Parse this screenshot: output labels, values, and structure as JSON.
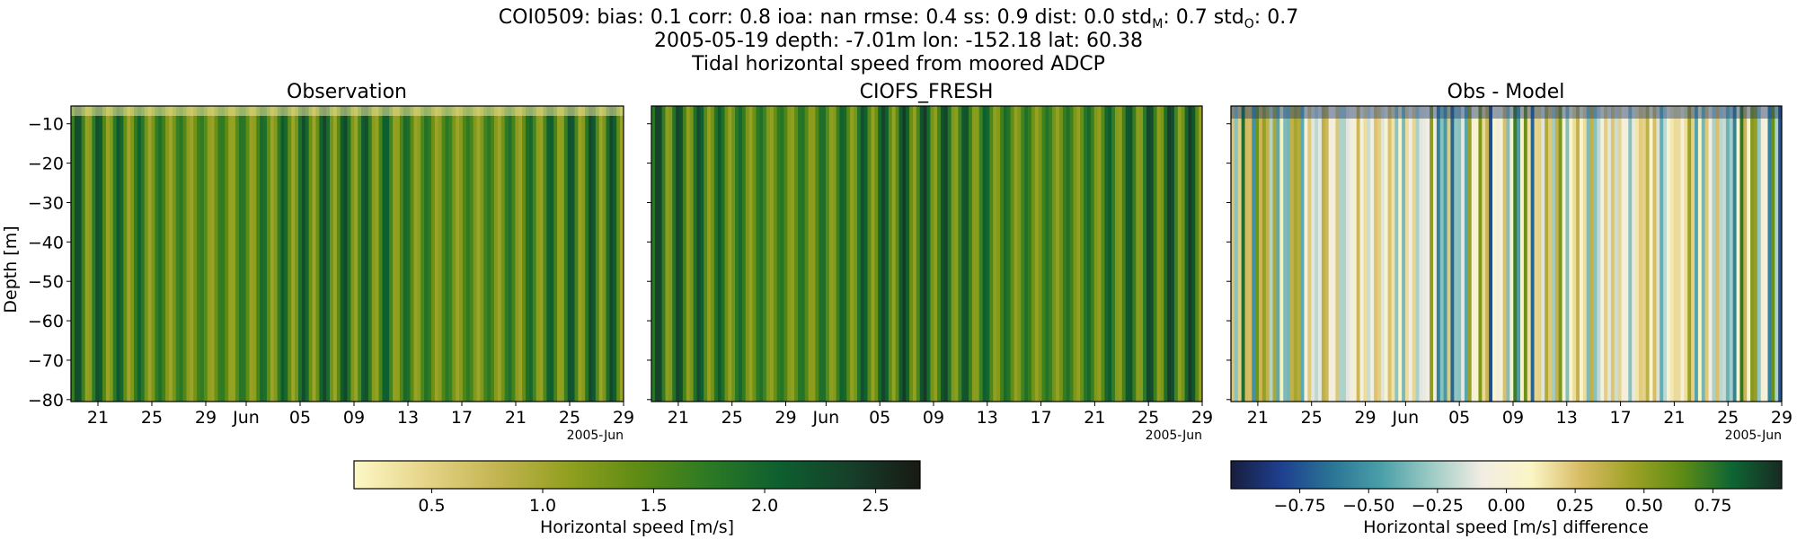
{
  "figure": {
    "title_prefix": "COI0509: bias: 0.1  corr: 0.8  ioa: nan  rmse: 0.4  ss: 0.9  dist: 0.0  std",
    "std_m_sub": "M",
    "std_m_val": ": 0.7  std",
    "std_o_sub": "O",
    "std_o_val": ": 0.7",
    "subtitle": "2005-05-19 depth: -7.01m lon: -152.18 lat: 60.38",
    "subtitle2": "Tidal horizontal speed from moored ADCP"
  },
  "colors": {
    "speed_cmap": [
      "#fdf8c6",
      "#e6d589",
      "#c4b552",
      "#93a020",
      "#5f8c14",
      "#2d7a24",
      "#0e5f30",
      "#16402a",
      "#181914"
    ],
    "diff_cmap": [
      "#181e3d",
      "#1e3f8f",
      "#2a7495",
      "#4a9fa8",
      "#9ccbc4",
      "#f1ede4",
      "#fbf5c5",
      "#d7bb63",
      "#9ea226",
      "#5f8c14",
      "#0e6634",
      "#182a22"
    ]
  },
  "chart_data": [
    {
      "type": "heatmap",
      "title": "Observation",
      "ylabel": "Depth [m]",
      "ylim": [
        -80.5,
        -5.5
      ],
      "yticks": [
        -10,
        -20,
        -30,
        -40,
        -50,
        -60,
        -70,
        -80
      ],
      "xlim": [
        "2005-05-19",
        "2005-06-29"
      ],
      "xticks": [
        "21",
        "25",
        "29",
        "Jun",
        "05",
        "09",
        "13",
        "17",
        "21",
        "25",
        "29"
      ],
      "xtick_dates": [
        "2005-05-21",
        "2005-05-25",
        "2005-05-29",
        "2005-06-01",
        "2005-06-05",
        "2005-06-09",
        "2005-06-13",
        "2005-06-17",
        "2005-06-21",
        "2005-06-25",
        "2005-06-29"
      ],
      "x_offset_label": "2005-Jun",
      "colorbar": {
        "label": "Horizontal speed [m/s]",
        "range": [
          0.15,
          2.7
        ],
        "ticks": [
          0.5,
          1.0,
          1.5,
          2.0,
          2.5
        ],
        "tick_labels": [
          "0.5",
          "1.0",
          "1.5",
          "2.0",
          "2.5"
        ]
      }
    },
    {
      "type": "heatmap",
      "title": "CIOFS_FRESH",
      "ylim": [
        -80.5,
        -5.5
      ],
      "xlim": [
        "2005-05-19",
        "2005-06-29"
      ],
      "xticks": [
        "21",
        "25",
        "29",
        "Jun",
        "05",
        "09",
        "13",
        "17",
        "21",
        "25",
        "29"
      ],
      "x_offset_label": "2005-Jun",
      "colorbar": "shared with Observation"
    },
    {
      "type": "heatmap",
      "title": "Obs - Model",
      "ylim": [
        -80.5,
        -5.5
      ],
      "xlim": [
        "2005-05-19",
        "2005-06-29"
      ],
      "xticks": [
        "21",
        "25",
        "29",
        "Jun",
        "05",
        "09",
        "13",
        "17",
        "21",
        "25",
        "29"
      ],
      "x_offset_label": "2005-Jun",
      "colorbar": {
        "label": "Horizontal speed [m/s] difference",
        "range": [
          -1.0,
          1.0
        ],
        "ticks": [
          -0.75,
          -0.5,
          -0.25,
          0.0,
          0.25,
          0.5,
          0.75
        ],
        "tick_labels": [
          "−0.75",
          "−0.50",
          "−0.25",
          "0.00",
          "0.25",
          "0.50",
          "0.75"
        ]
      }
    }
  ]
}
